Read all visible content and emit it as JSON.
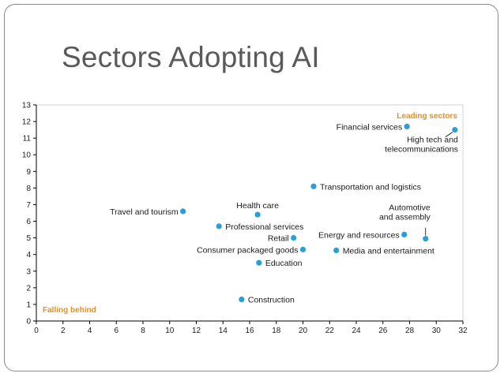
{
  "slide": {
    "title": "Sectors Adopting AI"
  },
  "colors": {
    "point": "#2a9fd6",
    "annotation": "#e8901e",
    "axis": "#000000",
    "label": "#1a1a1a",
    "title": "#5a5a5a",
    "border": "#8a8a8a"
  },
  "chart_data": {
    "type": "scatter",
    "title": "",
    "xlabel": "",
    "ylabel": "",
    "xlim": [
      0,
      32
    ],
    "ylim": [
      0,
      13
    ],
    "xticks": [
      0,
      2,
      4,
      6,
      8,
      10,
      12,
      14,
      16,
      18,
      20,
      22,
      24,
      26,
      28,
      30,
      32
    ],
    "yticks": [
      0,
      1,
      2,
      3,
      4,
      5,
      6,
      7,
      8,
      9,
      10,
      11,
      12,
      13
    ],
    "grid": false,
    "annotations": [
      {
        "text": "Leading sectors",
        "position": "top-right"
      },
      {
        "text": "Falling behind",
        "position": "bottom-left"
      }
    ],
    "points": [
      {
        "label": "Financial services",
        "x": 27.8,
        "y": 11.7,
        "label_side": "left"
      },
      {
        "label": "High tech and\ntelecommunications",
        "x": 31.4,
        "y": 11.5,
        "label_side": "below-left",
        "leader": true
      },
      {
        "label": "Transportation and logistics",
        "x": 20.8,
        "y": 8.1,
        "label_side": "right"
      },
      {
        "label": "Travel and tourism",
        "x": 11.0,
        "y": 6.6,
        "label_side": "left"
      },
      {
        "label": "Health care",
        "x": 16.6,
        "y": 6.4,
        "label_side": "above"
      },
      {
        "label": "Professional services",
        "x": 13.7,
        "y": 5.7,
        "label_side": "right"
      },
      {
        "label": "Retail",
        "x": 19.3,
        "y": 5.0,
        "label_side": "left"
      },
      {
        "label": "Energy and resources",
        "x": 27.6,
        "y": 5.2,
        "label_side": "left"
      },
      {
        "label": "Automotive\nand assembly",
        "x": 29.2,
        "y": 4.95,
        "label_side": "above",
        "leader": true
      },
      {
        "label": "Consumer packaged goods",
        "x": 20.0,
        "y": 4.3,
        "label_side": "left"
      },
      {
        "label": "Media and entertainment",
        "x": 22.5,
        "y": 4.25,
        "label_side": "right"
      },
      {
        "label": "Education",
        "x": 16.7,
        "y": 3.5,
        "label_side": "right"
      },
      {
        "label": "Construction",
        "x": 15.4,
        "y": 1.3,
        "label_side": "right"
      }
    ]
  }
}
